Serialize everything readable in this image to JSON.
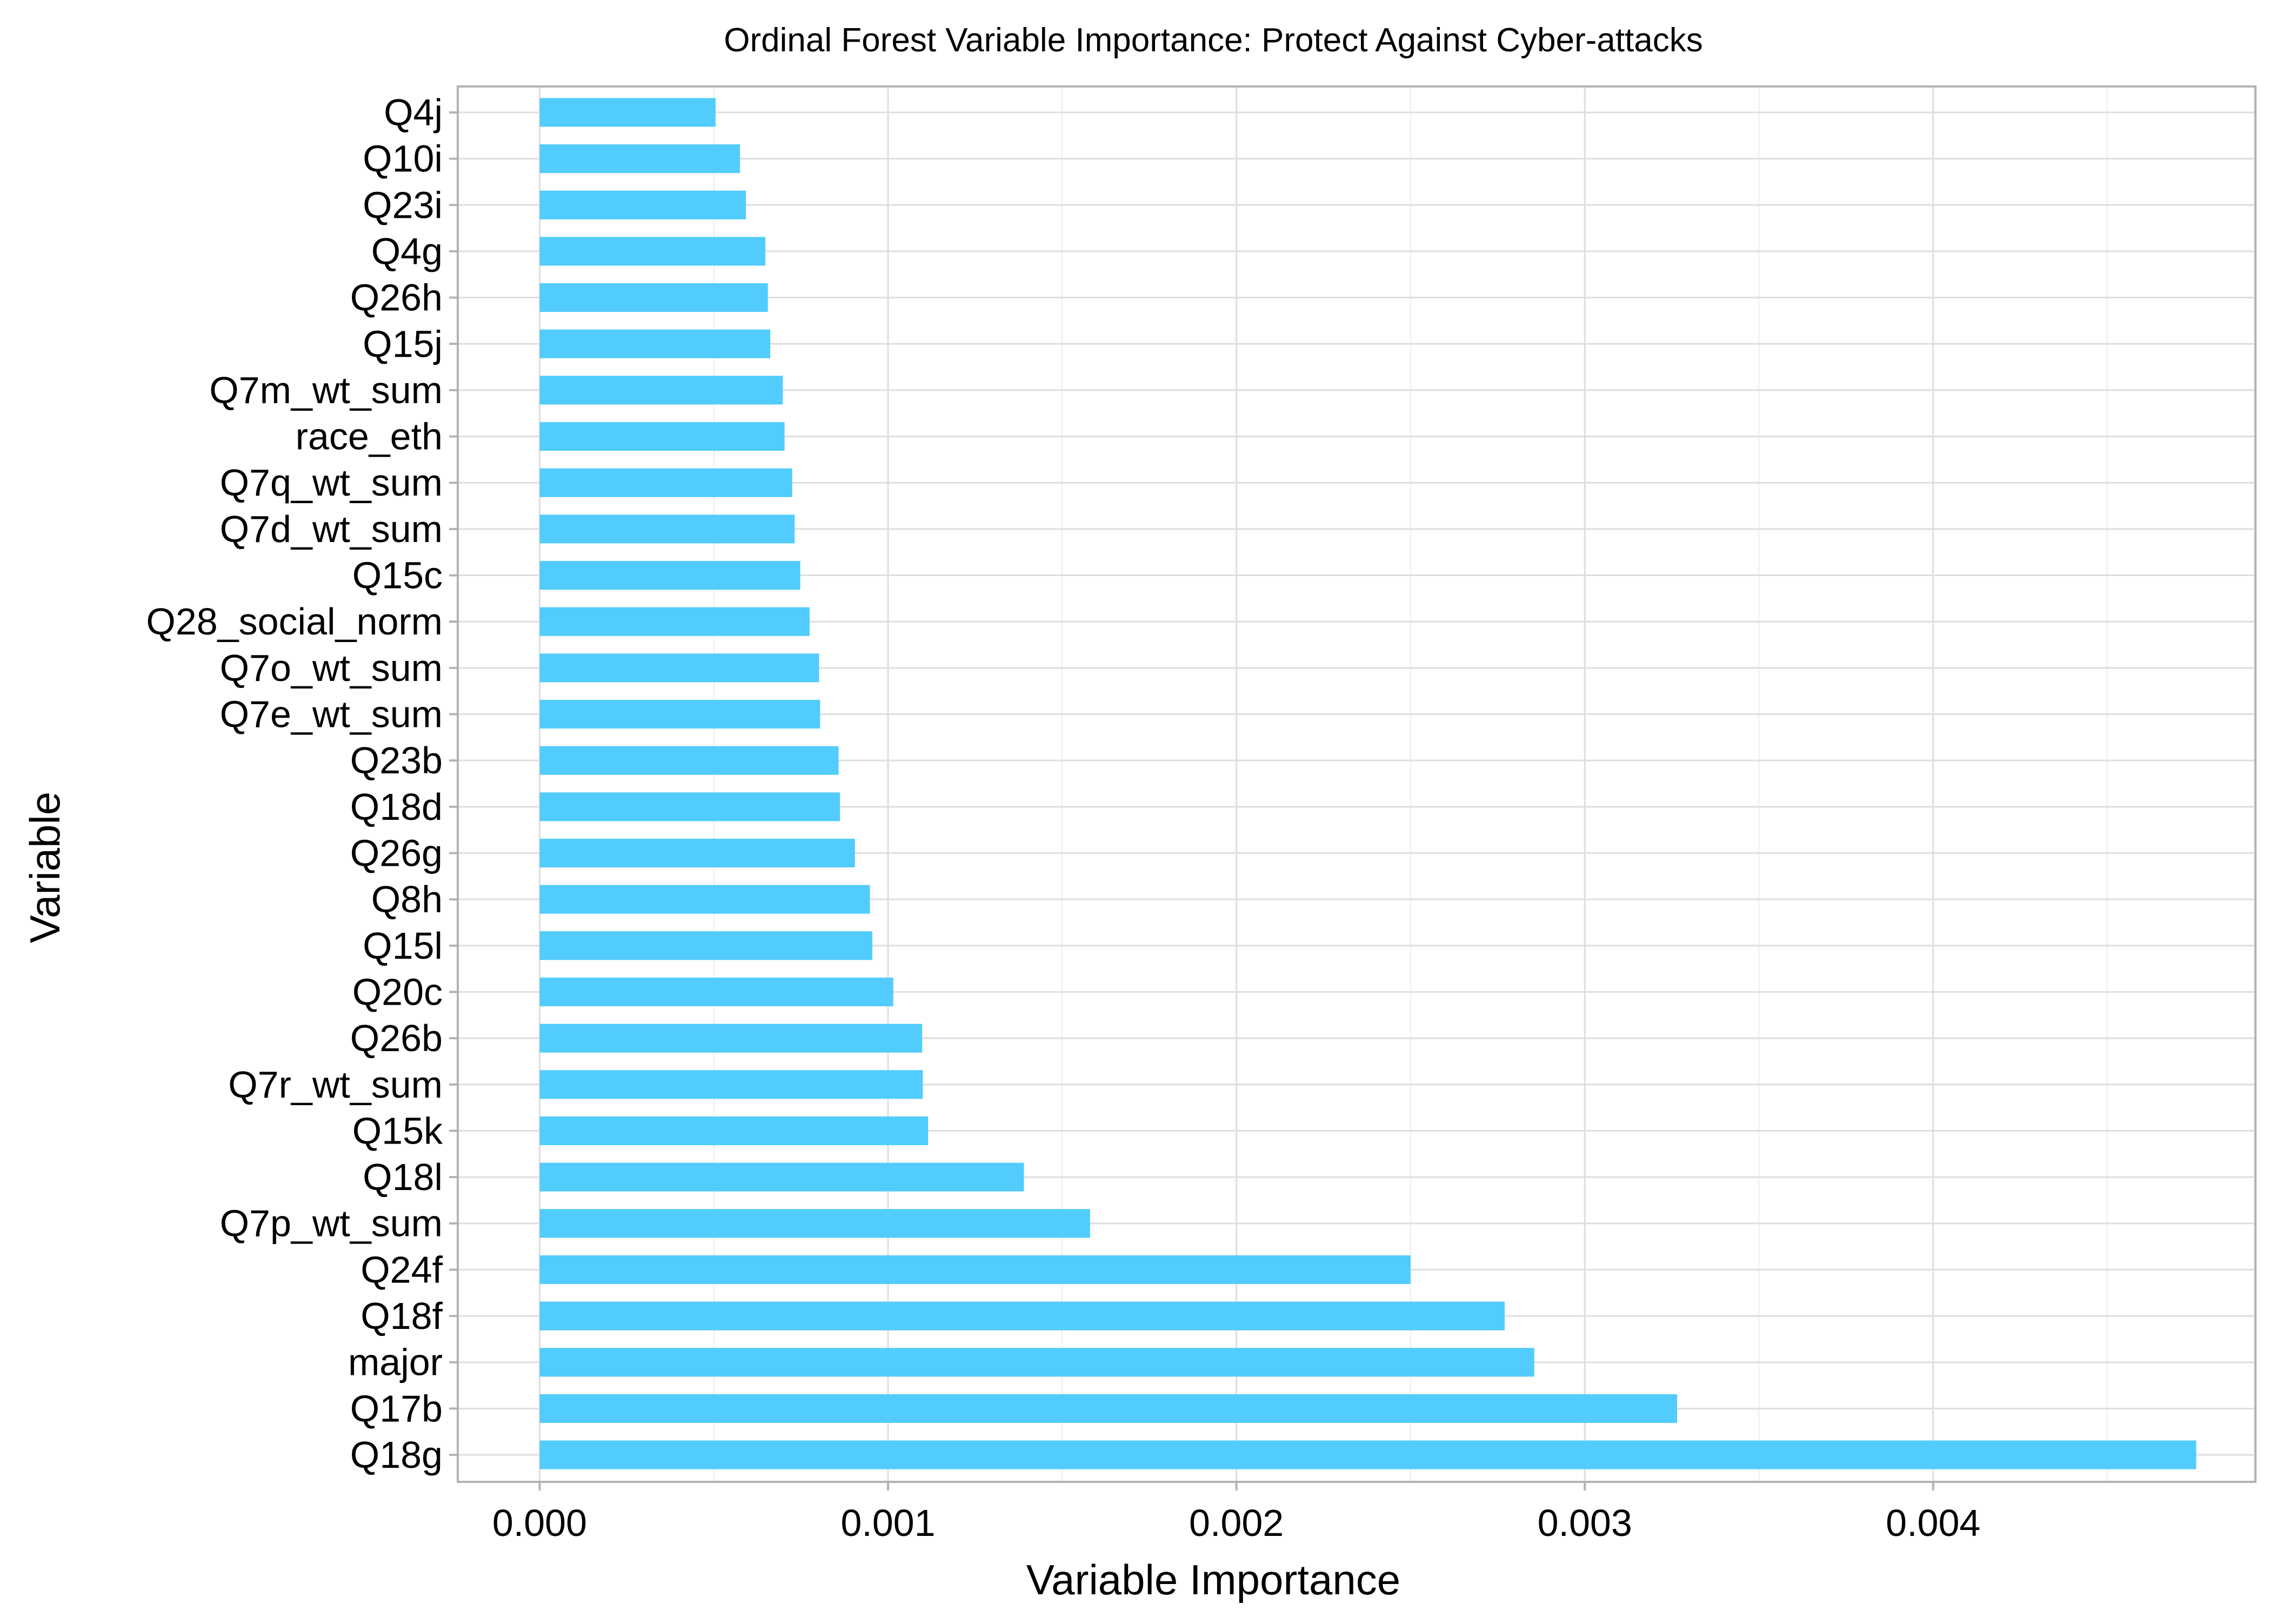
{
  "chart_data": {
    "type": "bar",
    "orientation": "horizontal",
    "title": "Ordinal Forest Variable Importance: Protect Against Cyber-attacks",
    "xlabel": "Variable Importance",
    "ylabel": "Variable",
    "xlim": [
      -0.000235,
      0.004925
    ],
    "x_ticks": [
      0.0,
      0.001,
      0.002,
      0.003,
      0.004
    ],
    "x_tick_labels": [
      "0.000",
      "0.001",
      "0.002",
      "0.003",
      "0.004"
    ],
    "grid": true,
    "legend": "none",
    "bar_color": "#52CCFC",
    "categories": [
      "Q4j",
      "Q10i",
      "Q23i",
      "Q4g",
      "Q26h",
      "Q15j",
      "Q7m_wt_sum",
      "race_eth",
      "Q7q_wt_sum",
      "Q7d_wt_sum",
      "Q15c",
      "Q28_social_norm",
      "Q7o_wt_sum",
      "Q7e_wt_sum",
      "Q23b",
      "Q18d",
      "Q26g",
      "Q8h",
      "Q15l",
      "Q20c",
      "Q26b",
      "Q7r_wt_sum",
      "Q15k",
      "Q18l",
      "Q7p_wt_sum",
      "Q24f",
      "Q18f",
      "major",
      "Q17b",
      "Q18g"
    ],
    "values": [
      0.000505,
      0.000575,
      0.000592,
      0.000648,
      0.000655,
      0.000662,
      0.000698,
      0.000703,
      0.000725,
      0.000732,
      0.000748,
      0.000775,
      0.000802,
      0.000805,
      0.000858,
      0.000862,
      0.000905,
      0.000948,
      0.000955,
      0.001015,
      0.001098,
      0.0011,
      0.001115,
      0.00139,
      0.00158,
      0.0025,
      0.00277,
      0.002855,
      0.003265,
      0.004755
    ]
  },
  "colors": {
    "bar": "#52CCFC",
    "grid_major": "#DEDEDE",
    "grid_minor": "#EDEDED",
    "panel_border": "#B3B3B3",
    "text": "#000000"
  }
}
